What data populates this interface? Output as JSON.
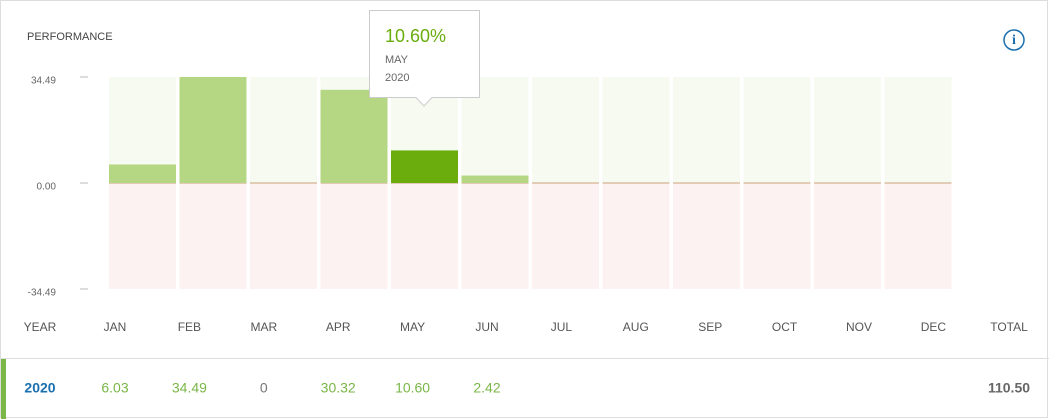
{
  "chart_data": {
    "type": "bar",
    "title": "PERFORMANCE",
    "categories": [
      "JAN",
      "FEB",
      "MAR",
      "APR",
      "MAY",
      "JUN",
      "JUL",
      "AUG",
      "SEP",
      "OCT",
      "NOV",
      "DEC"
    ],
    "series": [
      {
        "name": "2020",
        "color": "#b5d783",
        "values": [
          6.03,
          34.49,
          0,
          30.32,
          10.6,
          2.42,
          null,
          null,
          null,
          null,
          null,
          null
        ],
        "value_labels": [
          "6.03",
          "34.49",
          "0",
          "30.32",
          "10.60",
          "2.42",
          null,
          null,
          null,
          null,
          null,
          null
        ]
      }
    ],
    "highlight_index": 4,
    "highlight_color": "#6aad0d",
    "positive_background": "#f6faf0",
    "negative_background": "#fcf2f2",
    "ylim": [
      -34.49,
      34.49
    ],
    "yticks": [
      34.49,
      {
        "value": 0,
        "label": "0.00"
      },
      -34.49
    ]
  },
  "table": {
    "year_header": "YEAR",
    "total_header": "TOTAL",
    "total": {
      "value": 110.5,
      "label": "110.50"
    }
  },
  "tooltip": {
    "value": "10.60%",
    "month": "MAY",
    "year": "2020"
  }
}
